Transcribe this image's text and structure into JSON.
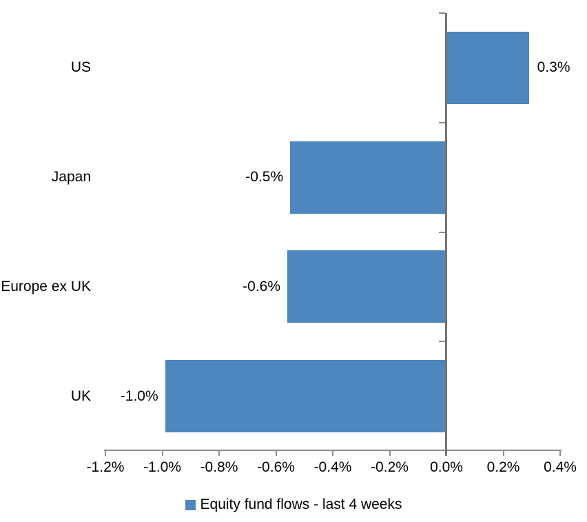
{
  "chart_data": {
    "type": "bar",
    "orientation": "horizontal",
    "title": "",
    "xlabel": "",
    "ylabel": "",
    "grid": false,
    "legend_position": "bottom",
    "categories": [
      "US",
      "Japan",
      "Europe ex UK",
      "UK"
    ],
    "series": [
      {
        "name": "Equity fund flows - last 4 weeks",
        "values": [
          0.3,
          -0.5,
          -0.6,
          -1.0
        ],
        "data_labels": [
          "0.3%",
          "-0.5%",
          "-0.6%",
          "-1.0%"
        ],
        "bar_extents": [
          0.29,
          -0.55,
          -0.56,
          -0.99
        ]
      }
    ],
    "xlim": [
      -1.2,
      0.4
    ],
    "x_ticks": [
      {
        "value": -1.2,
        "label": "-1.2%"
      },
      {
        "value": -1.0,
        "label": "-1.0%"
      },
      {
        "value": -0.8,
        "label": "-0.8%"
      },
      {
        "value": -0.6,
        "label": "-0.6%"
      },
      {
        "value": -0.4,
        "label": "-0.4%"
      },
      {
        "value": -0.2,
        "label": "-0.2%"
      },
      {
        "value": 0.0,
        "label": "0.0%"
      },
      {
        "value": 0.2,
        "label": "0.2%"
      },
      {
        "value": 0.4,
        "label": "0.4%"
      }
    ],
    "colors": {
      "bar": "#4E86BE",
      "axis_line": "#8C8C8C",
      "zero_axis_line": "#737373",
      "text": "#000000",
      "background": "#FFFFFF"
    }
  },
  "legend": {
    "label": "Equity fund flows - last 4 weeks"
  }
}
